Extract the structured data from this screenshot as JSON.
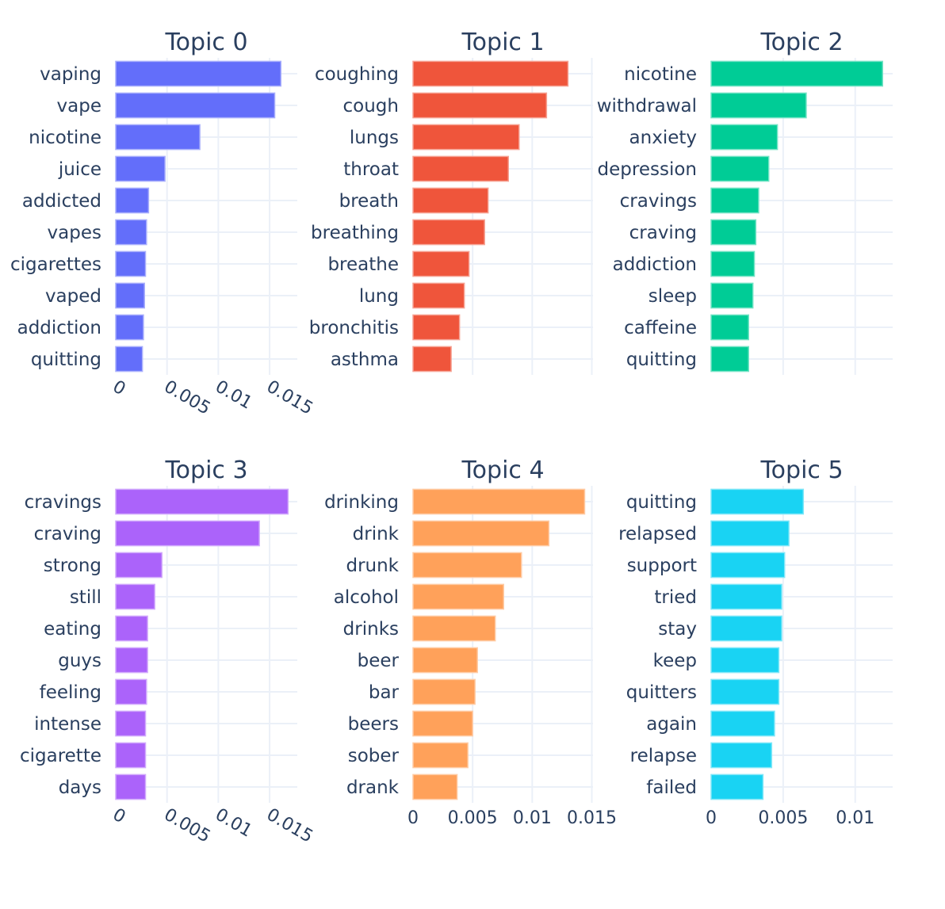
{
  "chart_data": [
    {
      "type": "bar",
      "orientation": "horizontal",
      "title": "Topic 0",
      "color": "#636efa",
      "categories": [
        "vaping",
        "vape",
        "nicotine",
        "juice",
        "addicted",
        "vapes",
        "cigarettes",
        "vaped",
        "addiction",
        "quitting"
      ],
      "values": [
        0.0161,
        0.0155,
        0.0082,
        0.0048,
        0.0032,
        0.003,
        0.0029,
        0.0028,
        0.0027,
        0.0026
      ],
      "xlim": [
        0,
        0.0177
      ],
      "xticks": [
        0,
        0.005,
        0.01,
        0.015
      ],
      "xtick_labels": [
        "0",
        "0.005",
        "0.01",
        "0.015"
      ],
      "xtick_labels_visible": true,
      "xtick_rotation": 30
    },
    {
      "type": "bar",
      "orientation": "horizontal",
      "title": "Topic 1",
      "color": "#ef553b",
      "categories": [
        "coughing",
        "cough",
        "lungs",
        "throat",
        "breath",
        "breathing",
        "breathe",
        "lung",
        "bronchitis",
        "asthma"
      ],
      "values": [
        0.013,
        0.0112,
        0.0089,
        0.008,
        0.0063,
        0.006,
        0.0047,
        0.0043,
        0.0039,
        0.0032
      ],
      "xlim": [
        0,
        0.0151
      ],
      "xticks": [
        0,
        0.005,
        0.01,
        0.015
      ],
      "xtick_labels": [
        "0",
        "0.005",
        "0.01",
        "0.015"
      ],
      "xtick_labels_visible": false
    },
    {
      "type": "bar",
      "orientation": "horizontal",
      "title": "Topic 2",
      "color": "#00cc96",
      "categories": [
        "nicotine",
        "withdrawal",
        "anxiety",
        "depression",
        "cravings",
        "craving",
        "addiction",
        "sleep",
        "caffeine",
        "quitting"
      ],
      "values": [
        0.0119,
        0.0066,
        0.0046,
        0.004,
        0.0033,
        0.0031,
        0.003,
        0.0029,
        0.0026,
        0.0026
      ],
      "xlim": [
        0,
        0.0126
      ],
      "xticks": [
        0,
        0.005,
        0.01
      ],
      "xtick_labels": [
        "0",
        "0.005",
        "0.01"
      ],
      "xtick_labels_visible": false
    },
    {
      "type": "bar",
      "orientation": "horizontal",
      "title": "Topic 3",
      "color": "#ab63fa",
      "categories": [
        "cravings",
        "craving",
        "strong",
        "still",
        "eating",
        "guys",
        "feeling",
        "intense",
        "cigarette",
        "days"
      ],
      "values": [
        0.0168,
        0.014,
        0.0045,
        0.0038,
        0.0031,
        0.0031,
        0.003,
        0.0029,
        0.0029,
        0.0029
      ],
      "xlim": [
        0,
        0.0177
      ],
      "xticks": [
        0,
        0.005,
        0.01,
        0.015
      ],
      "xtick_labels": [
        "0",
        "0.005",
        "0.01",
        "0.015"
      ],
      "xtick_labels_visible": true,
      "xtick_rotation": 30
    },
    {
      "type": "bar",
      "orientation": "horizontal",
      "title": "Topic 4",
      "color": "#ffa15a",
      "categories": [
        "drinking",
        "drink",
        "drunk",
        "alcohol",
        "drinks",
        "beer",
        "bar",
        "beers",
        "sober",
        "drank"
      ],
      "values": [
        0.0144,
        0.0114,
        0.0091,
        0.0076,
        0.0069,
        0.0054,
        0.0052,
        0.005,
        0.0046,
        0.0037
      ],
      "xlim": [
        0,
        0.0151
      ],
      "xticks": [
        0,
        0.005,
        0.01,
        0.015
      ],
      "xtick_labels": [
        "0",
        "0.005",
        "0.01",
        "0.015"
      ],
      "xtick_labels_visible": true,
      "xtick_rotation": 0
    },
    {
      "type": "bar",
      "orientation": "horizontal",
      "title": "Topic 5",
      "color": "#19d3f3",
      "categories": [
        "quitting",
        "relapsed",
        "support",
        "tried",
        "stay",
        "keep",
        "quitters",
        "again",
        "relapse",
        "failed"
      ],
      "values": [
        0.0064,
        0.0054,
        0.0051,
        0.0049,
        0.0049,
        0.0047,
        0.0047,
        0.0044,
        0.0042,
        0.0036
      ],
      "xlim": [
        0,
        0.0126
      ],
      "xticks": [
        0,
        0.005,
        0.01
      ],
      "xtick_labels": [
        "0",
        "0.005",
        "0.01"
      ],
      "xtick_labels_visible": true,
      "xtick_rotation": 0
    }
  ]
}
